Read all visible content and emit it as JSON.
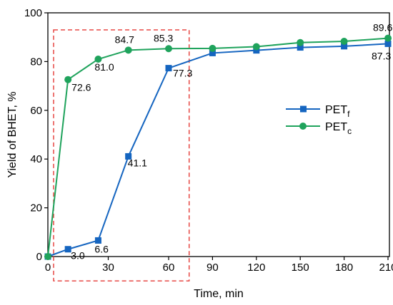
{
  "chart_data": {
    "type": "line",
    "xlabel": "Time, min",
    "ylabel": "Yield of BHET, %",
    "ylim": [
      0,
      100
    ],
    "x_ticks": [
      0,
      30,
      60,
      90,
      120,
      150,
      180,
      210
    ],
    "y_ticks": [
      0,
      20,
      40,
      60,
      80,
      100
    ],
    "x_axis_note": "x axis is piecewise: 0–60 min expanded, 60–210 min compressed",
    "grid": false,
    "legend_position": "center-right",
    "highlight_box": {
      "x_range": [
        0,
        75
      ],
      "y_range": [
        -10,
        93
      ],
      "style": "red dashed"
    },
    "series": [
      {
        "name": "PET",
        "subscript": "f",
        "color": "#1565c0",
        "marker": "square",
        "x": [
          0,
          10,
          25,
          40,
          60,
          90,
          120,
          150,
          180,
          210
        ],
        "y": [
          0,
          3.0,
          6.6,
          41.1,
          77.3,
          83.5,
          84.6,
          85.8,
          86.3,
          87.3
        ],
        "labels": [
          {
            "x": 10,
            "text": "3.0"
          },
          {
            "x": 25,
            "text": "6.6"
          },
          {
            "x": 40,
            "text": "41.1"
          },
          {
            "x": 60,
            "text": "77.3"
          },
          {
            "x": 210,
            "text": "87.3"
          }
        ]
      },
      {
        "name": "PET",
        "subscript": "c",
        "color": "#1fa35c",
        "marker": "circle",
        "x": [
          0,
          10,
          25,
          40,
          60,
          90,
          120,
          150,
          180,
          210
        ],
        "y": [
          0,
          72.6,
          81.0,
          84.7,
          85.3,
          85.4,
          86.1,
          87.8,
          88.3,
          89.6
        ],
        "labels": [
          {
            "x": 10,
            "text": "72.6"
          },
          {
            "x": 25,
            "text": "81.0"
          },
          {
            "x": 40,
            "text": "84.7"
          },
          {
            "x": 60,
            "text": "85.3"
          },
          {
            "x": 210,
            "text": "89.6"
          }
        ]
      }
    ]
  }
}
